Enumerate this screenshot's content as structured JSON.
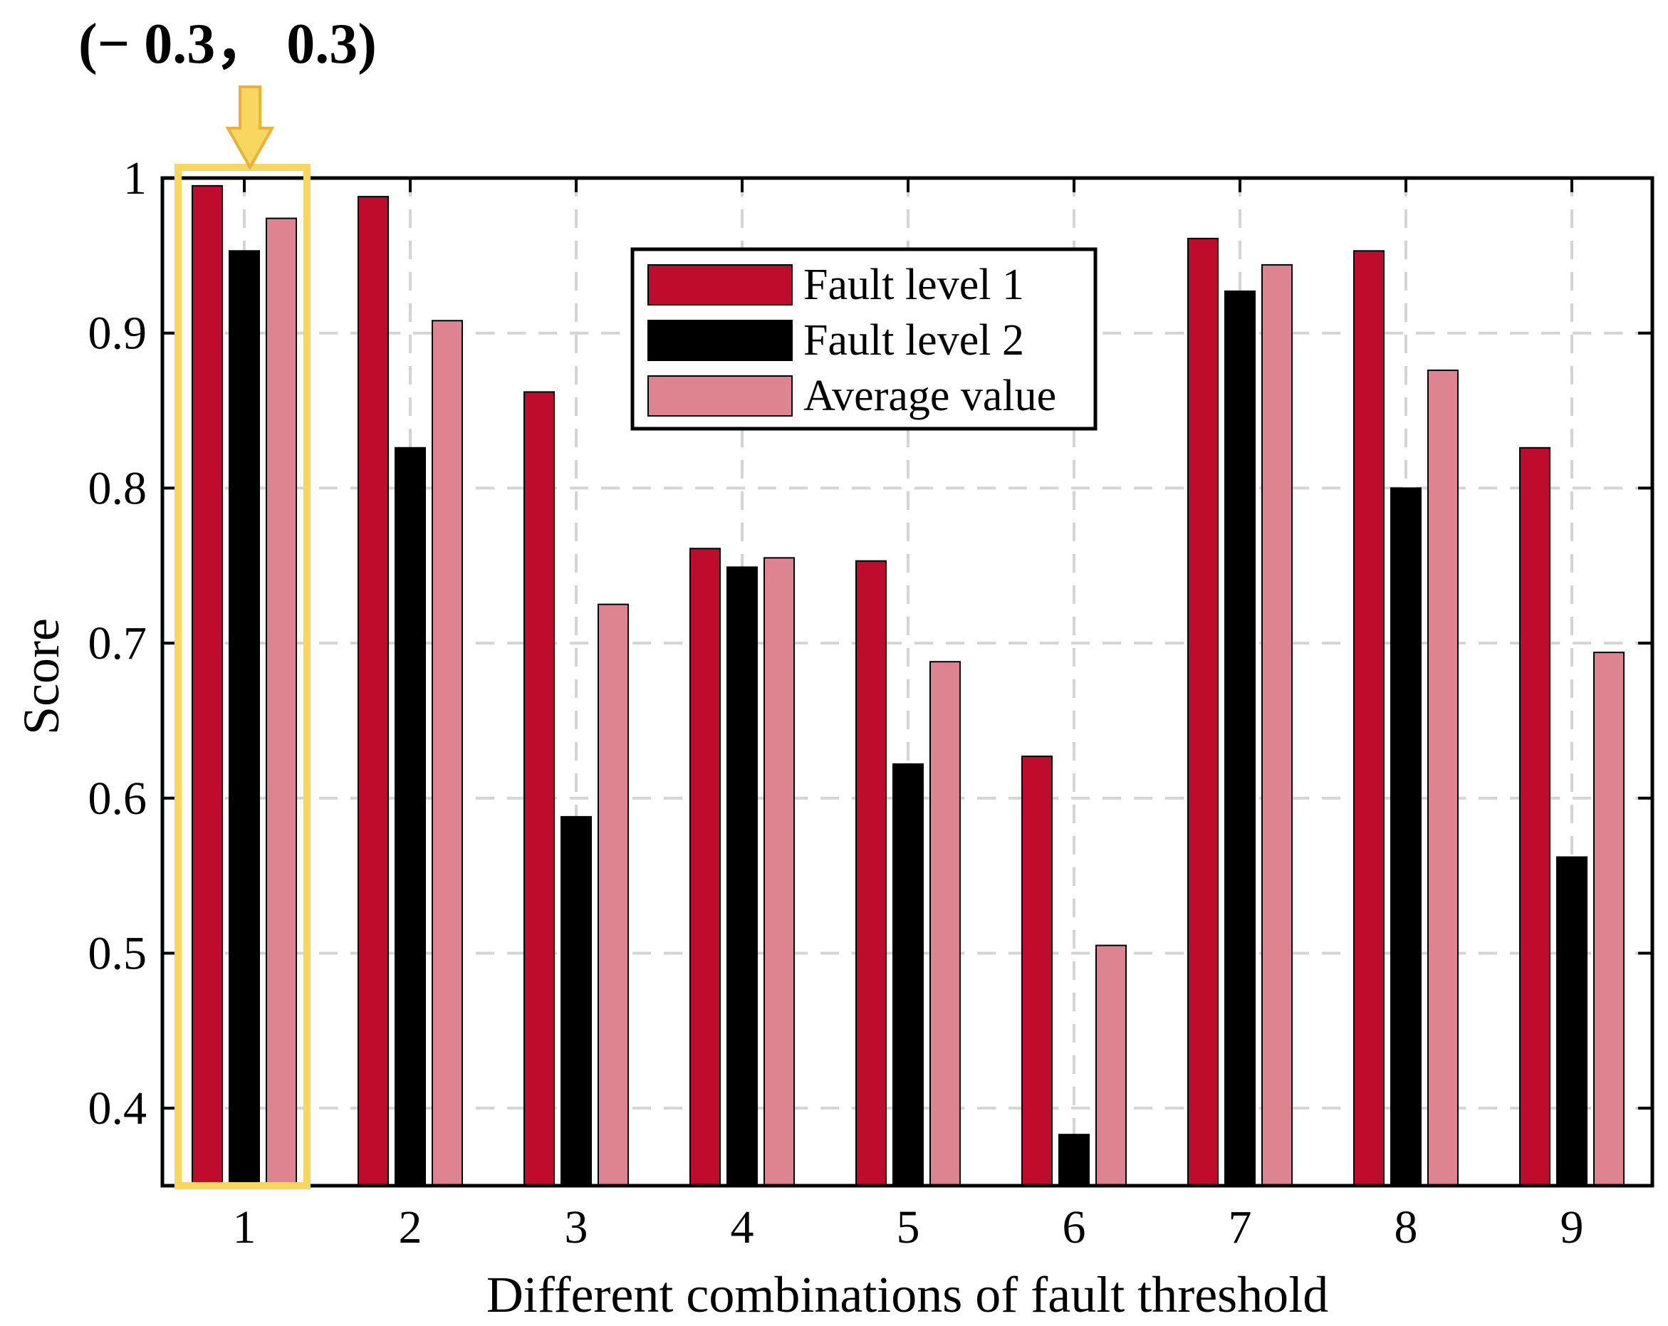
{
  "chart_data": {
    "type": "bar",
    "title": "",
    "xlabel": "Different combinations of fault threshold",
    "ylabel": "Score",
    "categories": [
      "1",
      "2",
      "3",
      "4",
      "5",
      "6",
      "7",
      "8",
      "9"
    ],
    "ylim": [
      0.35,
      1.0
    ],
    "yticks": [
      0.4,
      0.5,
      0.6,
      0.7,
      0.8,
      0.9,
      1.0
    ],
    "ytick_labels": [
      "0.4",
      "0.5",
      "0.6",
      "0.7",
      "0.8",
      "0.9",
      "1"
    ],
    "grid": true,
    "legend_position": "top-center",
    "series": [
      {
        "name": "Fault level 1",
        "color": "#C00C2C",
        "values": [
          0.995,
          0.988,
          0.862,
          0.761,
          0.753,
          0.627,
          0.961,
          0.953,
          0.826
        ]
      },
      {
        "name": "Fault level 2",
        "color": "#000000",
        "values": [
          0.953,
          0.826,
          0.588,
          0.749,
          0.622,
          0.383,
          0.927,
          0.8,
          0.562
        ]
      },
      {
        "name": "Average value",
        "color": "#DE8491",
        "values": [
          0.974,
          0.908,
          0.725,
          0.755,
          0.688,
          0.505,
          0.944,
          0.876,
          0.694
        ]
      }
    ],
    "annotation": {
      "text": "(− 0.3， 0.3)",
      "highlight_category": "1",
      "highlight_color": "#F9D660"
    }
  }
}
